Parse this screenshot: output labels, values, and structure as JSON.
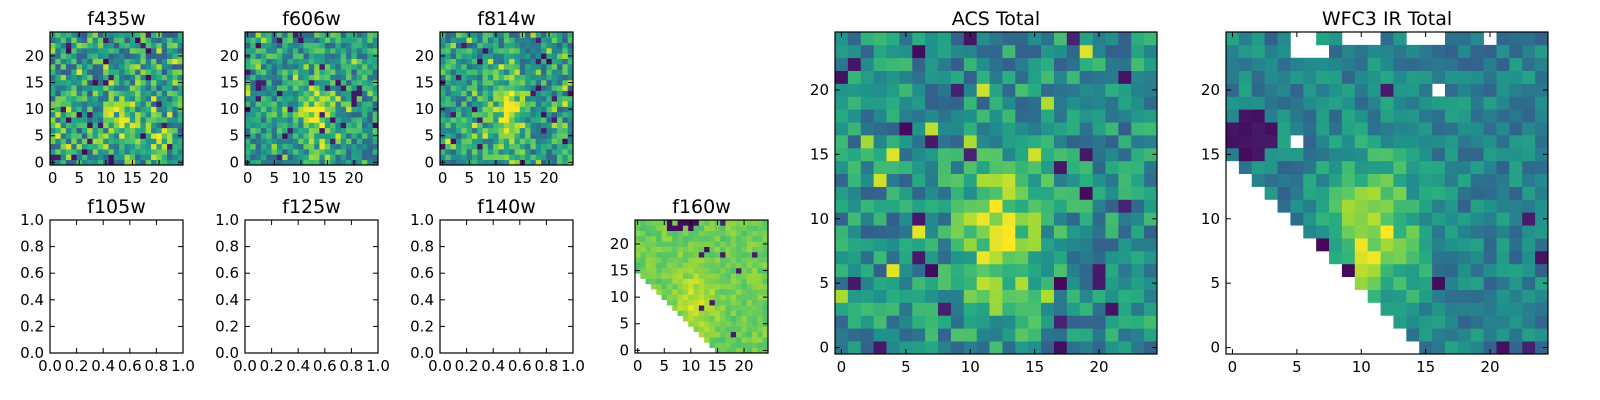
{
  "chart_data": [
    {
      "id": "f435w",
      "type": "heatmap",
      "title": "f435w",
      "grid_size": 25,
      "fill": "noise",
      "base_level": 0.55,
      "noise": 0.28,
      "dark_freq": 0.05,
      "bright_freq": 0.05,
      "blobs": [
        {
          "cx": 13,
          "cy": 8,
          "sx": 3,
          "sy": 5,
          "amp": 0.18
        },
        {
          "cx": 20.5,
          "cy": 4.5,
          "sx": 1.6,
          "sy": 1.6,
          "amp": 0.3
        }
      ],
      "xlim": [
        -0.5,
        24.5
      ],
      "ylim": [
        -0.5,
        24.5
      ],
      "xticks": [
        0,
        5,
        10,
        15,
        20
      ],
      "yticks": [
        0,
        5,
        10,
        15,
        20
      ],
      "seed": 11
    },
    {
      "id": "f606w",
      "type": "heatmap",
      "title": "f606w",
      "grid_size": 25,
      "fill": "noise",
      "base_level": 0.55,
      "noise": 0.24,
      "dark_freq": 0.035,
      "bright_freq": 0.04,
      "blobs": [
        {
          "cx": 13,
          "cy": 9,
          "sx": 2.2,
          "sy": 4.2,
          "amp": 0.35
        }
      ],
      "xlim": [
        -0.5,
        24.5
      ],
      "ylim": [
        -0.5,
        24.5
      ],
      "xticks": [
        0,
        5,
        10,
        15,
        20
      ],
      "yticks": [
        0,
        5,
        10,
        15,
        20
      ],
      "seed": 23
    },
    {
      "id": "f814w",
      "type": "heatmap",
      "title": "f814w",
      "grid_size": 25,
      "fill": "noise",
      "base_level": 0.55,
      "noise": 0.24,
      "dark_freq": 0.035,
      "bright_freq": 0.04,
      "blobs": [
        {
          "cx": 12.5,
          "cy": 9,
          "sx": 2.2,
          "sy": 4.5,
          "amp": 0.35
        }
      ],
      "xlim": [
        -0.5,
        24.5
      ],
      "ylim": [
        -0.5,
        24.5
      ],
      "xticks": [
        0,
        5,
        10,
        15,
        20
      ],
      "yticks": [
        0,
        5,
        10,
        15,
        20
      ],
      "seed": 37
    },
    {
      "id": "f105w",
      "type": "empty",
      "title": "f105w",
      "xlim": [
        0,
        1
      ],
      "ylim": [
        0,
        1
      ],
      "xticks": [
        0.0,
        0.2,
        0.4,
        0.6,
        0.8,
        1.0
      ],
      "yticks": [
        0.0,
        0.2,
        0.4,
        0.6,
        0.8,
        1.0
      ]
    },
    {
      "id": "f125w",
      "type": "empty",
      "title": "f125w",
      "xlim": [
        0,
        1
      ],
      "ylim": [
        0,
        1
      ],
      "xticks": [
        0.0,
        0.2,
        0.4,
        0.6,
        0.8,
        1.0
      ],
      "yticks": [
        0.0,
        0.2,
        0.4,
        0.6,
        0.8,
        1.0
      ]
    },
    {
      "id": "f140w",
      "type": "empty",
      "title": "f140w",
      "xlim": [
        0,
        1
      ],
      "ylim": [
        0,
        1
      ],
      "xticks": [
        0.0,
        0.2,
        0.4,
        0.6,
        0.8,
        1.0
      ],
      "yticks": [
        0.0,
        0.2,
        0.4,
        0.6,
        0.8,
        1.0
      ]
    },
    {
      "id": "f160w",
      "type": "heatmap",
      "title": "f160w",
      "grid_size": 25,
      "fill": "masked",
      "base_level": 0.78,
      "noise": 0.07,
      "dark_freq": 0.02,
      "bright_freq": 0.0,
      "mask": {
        "lower_diag_sum": 15,
        "lower_left_rows": 17
      },
      "dark_top_row": true,
      "blobs": [
        {
          "cx": 11,
          "cy": 9,
          "sx": 2.5,
          "sy": 4,
          "amp": 0.15
        }
      ],
      "xlim": [
        -0.5,
        24.5
      ],
      "ylim": [
        -0.5,
        24.5
      ],
      "xticks": [
        0,
        5,
        10,
        15,
        20
      ],
      "yticks": [
        0,
        5,
        10,
        15,
        20
      ],
      "seed": 51
    },
    {
      "id": "acs_total",
      "type": "heatmap",
      "title": "ACS Total",
      "grid_size": 25,
      "fill": "noise",
      "base_level": 0.5,
      "noise": 0.2,
      "dark_freq": 0.035,
      "bright_freq": 0.03,
      "blobs": [
        {
          "cx": 12.5,
          "cy": 8.5,
          "sx": 2.2,
          "sy": 4.2,
          "amp": 0.42
        }
      ],
      "xlim": [
        -0.5,
        24.5
      ],
      "ylim": [
        -0.5,
        24.5
      ],
      "xticks": [
        0,
        5,
        10,
        15,
        20
      ],
      "yticks": [
        0,
        5,
        10,
        15,
        20
      ],
      "seed": 67
    },
    {
      "id": "wfc3_ir_total",
      "type": "heatmap",
      "title": "WFC3 IR Total",
      "grid_size": 25,
      "fill": "masked",
      "base_level": 0.45,
      "noise": 0.14,
      "dark_freq": 0.02,
      "bright_freq": 0.0,
      "mask": {
        "lower_diag_sum": 15,
        "lower_left_rows": 17,
        "holes": [
          [
            5,
            23
          ],
          [
            6,
            23
          ],
          [
            7,
            23
          ],
          [
            5,
            24
          ],
          [
            6,
            24
          ],
          [
            9,
            24
          ],
          [
            10,
            24
          ],
          [
            11,
            24
          ],
          [
            14,
            24
          ],
          [
            15,
            24
          ],
          [
            16,
            24
          ],
          [
            20,
            24
          ],
          [
            16,
            20
          ],
          [
            5,
            16
          ]
        ]
      },
      "dark_blob": {
        "cx": 1.5,
        "cy": 16.5,
        "r": 1.8
      },
      "blobs": [
        {
          "cx": 11,
          "cy": 9,
          "sx": 2.5,
          "sy": 4,
          "amp": 0.45
        }
      ],
      "xlim": [
        -0.5,
        24.5
      ],
      "ylim": [
        -0.5,
        24.5
      ],
      "xticks": [
        0,
        5,
        10,
        15,
        20
      ],
      "yticks": [
        0,
        5,
        10,
        15,
        20
      ],
      "seed": 83
    }
  ],
  "colormap": {
    "name": "viridis",
    "stops": [
      "#440154",
      "#472c7a",
      "#3b518b",
      "#2c718e",
      "#21908d",
      "#27ad81",
      "#5cc863",
      "#aadc32",
      "#fde725"
    ]
  },
  "style": {
    "axis_color": "#000000",
    "background_color": "#ffffff"
  }
}
